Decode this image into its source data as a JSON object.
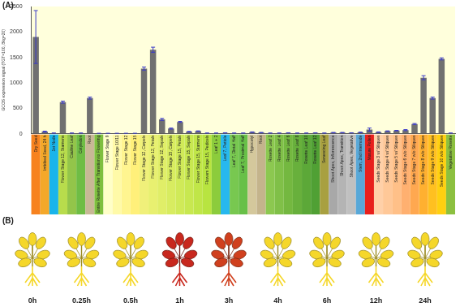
{
  "panel_labels": [
    "(A)",
    "(B)"
  ],
  "chart_data": {
    "type": "bar",
    "y_label": "GCOS expression signal (TGT=100, Bkg=20)",
    "categories": [
      "Dry Seed",
      "Imbibed Seed, 24 h",
      "1st Node",
      "Flower Stage 12, Stamens",
      "Cauline Leaf",
      "Cotyledon",
      "Root",
      "Entire Rosette After Transition to Flowering",
      "Flower Stage 9",
      "Flower Stage 10/11",
      "Flower Stage 12",
      "Flower Stage 15",
      "Flower Stage 12, Carpels",
      "Flower Stage 12, Petals",
      "Flower Stage 12, Sepals",
      "Flower Stage 15, Carpels",
      "Flower Stage 15, Petals",
      "Flower Stage 15, Sepals",
      "Flower Stage 15, Stamens",
      "Flowers Stage 15, Pedicels",
      "Leaf 1 + 2",
      "Leaf 7, Petiole",
      "Leaf 7, Distal Half",
      "Leaf 7, Proximal Half",
      "Hypocotyl",
      "Root",
      "Rosette Leaf 2",
      "Rosette Leaf 4",
      "Rosette Leaf 6",
      "Rosette Leaf 8",
      "Rosette Leaf 10",
      "Rosette Leaf 12",
      "Senescing Leaf",
      "Shoot Apex, Inflorescence",
      "Shoot Apex, Transition",
      "Shoot Apex, Vegetative",
      "Stem, 2nd Internode",
      "Mature Pollen",
      "Seeds Stage 3 w/ Siliques",
      "Seeds Stage 4 w/ Siliques",
      "Seeds Stage 5 w/ Siliques",
      "Seeds Stage 6 w/o Siliques",
      "Seeds Stage 7 w/o Siliques",
      "Seeds Stage 8 w/o Siliques",
      "Seeds Stage 9 w/o Siliques",
      "Seeds Stage 10 w/o Siliques",
      "Vegetative Rosette"
    ],
    "values": [
      1900,
      40,
      10,
      620,
      10,
      10,
      700,
      5,
      5,
      5,
      5,
      5,
      1280,
      1650,
      280,
      100,
      230,
      40,
      50,
      10,
      10,
      15,
      10,
      10,
      30,
      20,
      10,
      10,
      15,
      10,
      10,
      15,
      10,
      20,
      20,
      15,
      25,
      80,
      30,
      50,
      60,
      70,
      190,
      1100,
      700,
      1470,
      10
    ],
    "errors": [
      520,
      10,
      3,
      20,
      3,
      3,
      20,
      2,
      2,
      2,
      2,
      2,
      30,
      50,
      20,
      10,
      10,
      5,
      5,
      3,
      3,
      3,
      3,
      3,
      5,
      5,
      3,
      3,
      3,
      3,
      3,
      3,
      3,
      5,
      5,
      3,
      5,
      30,
      5,
      5,
      5,
      10,
      10,
      40,
      20,
      20,
      3
    ],
    "color": "#707070",
    "ylim": [
      0,
      2500
    ],
    "yticks": [
      0,
      500,
      1000,
      1500,
      2000,
      2500
    ],
    "grid": false
  },
  "time_course": {
    "times": [
      "0h",
      "0.25h",
      "0.5h",
      "1h",
      "3h",
      "4h",
      "6h",
      "12h",
      "24h"
    ]
  }
}
